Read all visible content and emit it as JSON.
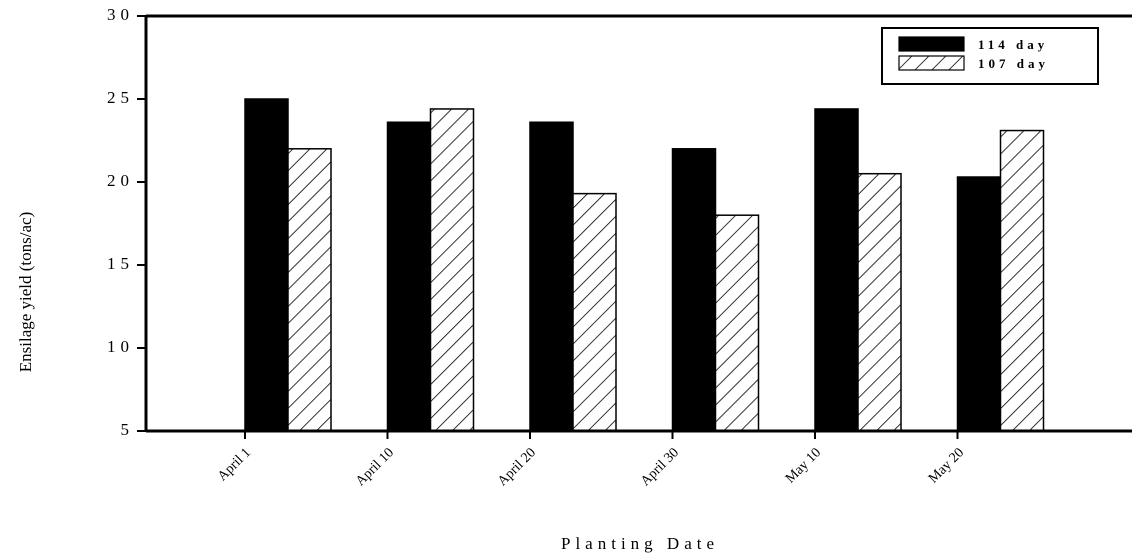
{
  "chart_data": {
    "type": "bar",
    "xlabel": "Planting Date",
    "ylabel": "Ensilage yield (tons/ac)",
    "categories": [
      "April 1",
      "April 10",
      "April 20",
      "April 30",
      "May 10",
      "May 20"
    ],
    "ylim": [
      5,
      30
    ],
    "yticks": [
      "30",
      "25",
      "20",
      "15",
      "10",
      "5"
    ],
    "series": [
      {
        "name": "114 day",
        "values": [
          25.0,
          23.6,
          23.6,
          22.0,
          24.4,
          20.3
        ],
        "fill": "solid",
        "color": "#000000"
      },
      {
        "name": "107 day",
        "values": [
          22.0,
          24.4,
          19.3,
          18.0,
          20.5,
          23.1
        ],
        "fill": "hatched",
        "color": "#000000"
      }
    ],
    "legend_position": "top-right",
    "grid": false
  }
}
